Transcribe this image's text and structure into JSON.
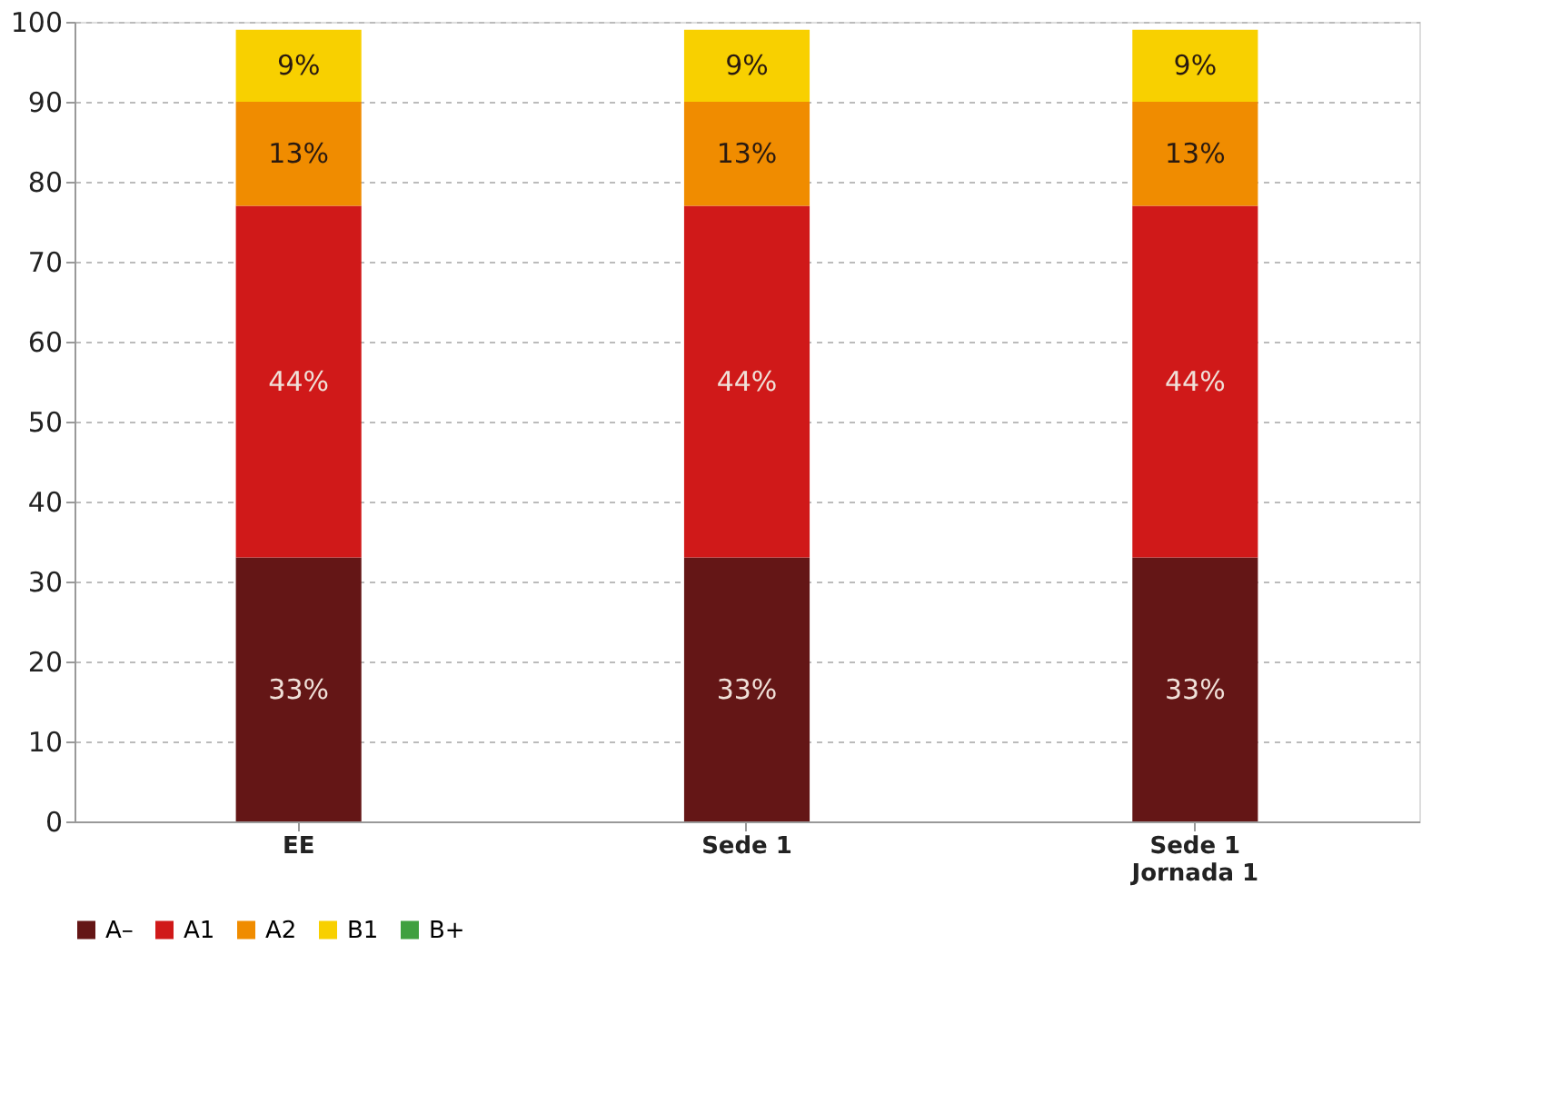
{
  "chart_data": {
    "type": "bar",
    "stacked": true,
    "categories": [
      "EE",
      "Sede 1",
      "Sede 1\nJornada 1"
    ],
    "series": [
      {
        "name": "A–",
        "color": "#641616",
        "values": [
          33,
          33,
          33
        ],
        "value_labels": [
          "33%",
          "33%",
          "33%"
        ]
      },
      {
        "name": "A1",
        "color": "#d01919",
        "values": [
          44,
          44,
          44
        ],
        "value_labels": [
          "44%",
          "44%",
          "44%"
        ]
      },
      {
        "name": "A2",
        "color": "#f08c00",
        "values": [
          13,
          13,
          13
        ],
        "value_labels": [
          "13%",
          "13%",
          "13%"
        ]
      },
      {
        "name": "B1",
        "color": "#f8d000",
        "values": [
          9,
          9,
          9
        ],
        "value_labels": [
          "9%",
          "9%",
          "9%"
        ]
      },
      {
        "name": "B+",
        "color": "#40a040",
        "values": [
          0,
          0,
          0
        ]
      }
    ],
    "ylim": [
      0,
      100
    ],
    "yticks": [
      0,
      10,
      20,
      30,
      40,
      50,
      60,
      70,
      80,
      90,
      100
    ],
    "grid": "y",
    "legend": "bottom"
  }
}
